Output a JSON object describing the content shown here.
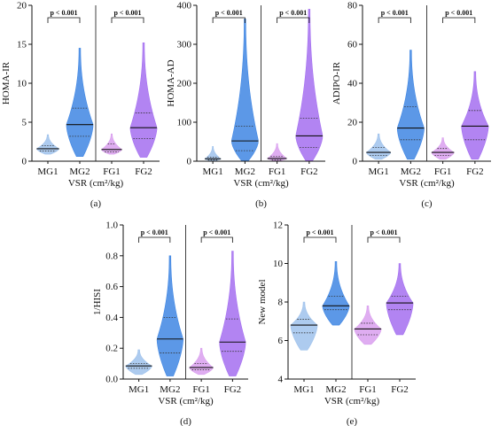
{
  "colors": {
    "mg1": "#9fc2ec",
    "mg2": "#3f86e3",
    "fg1": "#d99fee",
    "fg2": "#a46ff0"
  },
  "chart_data": [
    {
      "type": "violin",
      "panel_label": "(a)",
      "ylabel": "HOMA-IR",
      "xlabel": "VSR (cm²/kg)",
      "ylim": [
        0,
        20
      ],
      "yticks": [
        0,
        5,
        10,
        15,
        20
      ],
      "categories": [
        "MG1",
        "MG2",
        "FG1",
        "FG2"
      ],
      "groups": [
        {
          "name": "MG1",
          "max": 3.4,
          "min": 0.9,
          "median": 1.6,
          "q1": 1.3,
          "q3": 2.0,
          "w": 0.35
        },
        {
          "name": "MG2",
          "max": 14.5,
          "min": 0.6,
          "median": 4.7,
          "q1": 3.2,
          "q3": 6.8,
          "w": 0.42
        },
        {
          "name": "FG1",
          "max": 3.5,
          "min": 0.9,
          "median": 1.5,
          "q1": 1.2,
          "q3": 2.2,
          "w": 0.32
        },
        {
          "name": "FG2",
          "max": 15.2,
          "min": 0.5,
          "median": 4.3,
          "q1": 2.9,
          "q3": 6.2,
          "w": 0.42
        }
      ],
      "comparisons": [
        "p < 0.001",
        "p < 0.001"
      ]
    },
    {
      "type": "violin",
      "panel_label": "(b)",
      "ylabel": "HOMA-AD",
      "xlabel": "VSR (cm²/kg)",
      "ylim": [
        0,
        400
      ],
      "yticks": [
        0,
        100,
        200,
        300,
        400
      ],
      "categories": [
        "MG1",
        "MG2",
        "FG1",
        "FG2"
      ],
      "groups": [
        {
          "name": "MG1",
          "max": 38,
          "min": 1,
          "median": 6,
          "q1": 3,
          "q3": 10,
          "w": 0.25
        },
        {
          "name": "MG2",
          "max": 365,
          "min": 1,
          "median": 52,
          "q1": 27,
          "q3": 90,
          "w": 0.42
        },
        {
          "name": "FG1",
          "max": 45,
          "min": 1,
          "median": 7,
          "q1": 3,
          "q3": 12,
          "w": 0.3
        },
        {
          "name": "FG2",
          "max": 390,
          "min": 1,
          "median": 65,
          "q1": 35,
          "q3": 110,
          "w": 0.42
        }
      ],
      "comparisons": [
        "p < 0.001",
        "p < 0.001"
      ]
    },
    {
      "type": "violin",
      "panel_label": "(c)",
      "ylabel": "ADIPO-IR",
      "xlabel": "VSR (cm²/kg)",
      "ylim": [
        0,
        80
      ],
      "yticks": [
        0,
        20,
        40,
        60,
        80
      ],
      "categories": [
        "MG1",
        "MG2",
        "FG1",
        "FG2"
      ],
      "groups": [
        {
          "name": "MG1",
          "max": 14,
          "min": 1,
          "median": 4.5,
          "q1": 3,
          "q3": 7,
          "w": 0.38
        },
        {
          "name": "MG2",
          "max": 57,
          "min": 1,
          "median": 17,
          "q1": 11,
          "q3": 28,
          "w": 0.42
        },
        {
          "name": "FG1",
          "max": 12,
          "min": 1,
          "median": 4.5,
          "q1": 3,
          "q3": 6.5,
          "w": 0.35
        },
        {
          "name": "FG2",
          "max": 46,
          "min": 1,
          "median": 18,
          "q1": 11,
          "q3": 26,
          "w": 0.42
        }
      ],
      "comparisons": [
        "p < 0.001",
        "p < 0.001"
      ]
    },
    {
      "type": "violin",
      "panel_label": "(d)",
      "ylabel": "1/HISI",
      "xlabel": "VSR (cm²/kg)",
      "ylim": [
        0,
        1.0
      ],
      "yticks": [
        0,
        0.2,
        0.4,
        0.6,
        0.8,
        1.0
      ],
      "categories": [
        "MG1",
        "MG2",
        "FG1",
        "FG2"
      ],
      "groups": [
        {
          "name": "MG1",
          "max": 0.19,
          "min": 0.03,
          "median": 0.085,
          "q1": 0.07,
          "q3": 0.1,
          "w": 0.42
        },
        {
          "name": "MG2",
          "max": 0.8,
          "min": 0.02,
          "median": 0.26,
          "q1": 0.17,
          "q3": 0.4,
          "w": 0.42
        },
        {
          "name": "FG1",
          "max": 0.2,
          "min": 0.03,
          "median": 0.075,
          "q1": 0.06,
          "q3": 0.1,
          "w": 0.38
        },
        {
          "name": "FG2",
          "max": 0.83,
          "min": 0.02,
          "median": 0.24,
          "q1": 0.18,
          "q3": 0.39,
          "w": 0.42
        }
      ],
      "comparisons": [
        "p < 0.001",
        "p < 0.001"
      ]
    },
    {
      "type": "violin",
      "panel_label": "(e)",
      "ylabel": "New model",
      "xlabel": "VSR (cm²/kg)",
      "ylim": [
        4,
        12
      ],
      "yticks": [
        4,
        6,
        8,
        10,
        12
      ],
      "categories": [
        "MG1",
        "MG2",
        "FG1",
        "FG2"
      ],
      "groups": [
        {
          "name": "MG1",
          "max": 8.0,
          "min": 5.5,
          "median": 6.8,
          "q1": 6.4,
          "q3": 7.1,
          "w": 0.42
        },
        {
          "name": "MG2",
          "max": 10.1,
          "min": 6.8,
          "median": 7.8,
          "q1": 7.6,
          "q3": 8.3,
          "w": 0.42
        },
        {
          "name": "FG1",
          "max": 7.8,
          "min": 5.8,
          "median": 6.6,
          "q1": 6.3,
          "q3": 6.9,
          "w": 0.42
        },
        {
          "name": "FG2",
          "max": 10.0,
          "min": 6.3,
          "median": 7.95,
          "q1": 7.6,
          "q3": 8.3,
          "w": 0.42
        }
      ],
      "comparisons": [
        "p < 0.001",
        "p < 0.001"
      ]
    }
  ]
}
